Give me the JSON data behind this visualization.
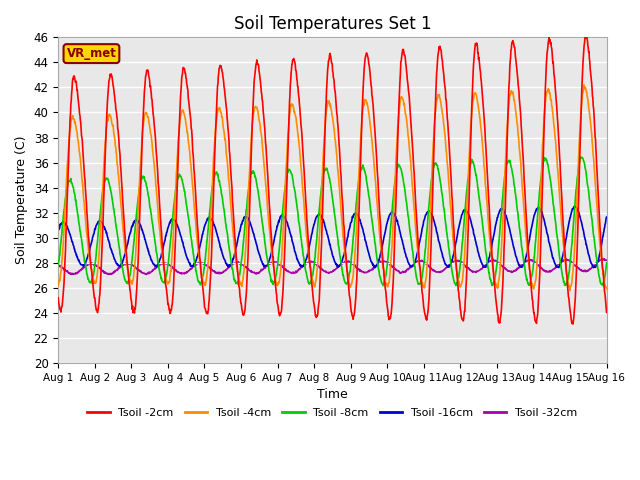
{
  "title": "Soil Temperatures Set 1",
  "xlabel": "Time",
  "ylabel": "Soil Temperature (C)",
  "ylim": [
    20,
    46
  ],
  "yticks": [
    20,
    22,
    24,
    26,
    28,
    30,
    32,
    34,
    36,
    38,
    40,
    42,
    44,
    46
  ],
  "x_labels": [
    "Aug 1",
    "Aug 2",
    "Aug 3",
    "Aug 4",
    "Aug 5",
    "Aug 6",
    "Aug 7",
    "Aug 8",
    "Aug 9",
    "Aug 10",
    "Aug 11",
    "Aug 12",
    "Aug 13",
    "Aug 14",
    "Aug 15",
    "Aug 16"
  ],
  "annotation_text": "VR_met",
  "annotation_color": "#8B0000",
  "annotation_bg": "#FFD700",
  "line_colors": {
    "Tsoil -2cm": "#FF0000",
    "Tsoil -4cm": "#FF8C00",
    "Tsoil -8cm": "#00CC00",
    "Tsoil -16cm": "#0000CC",
    "Tsoil -32cm": "#AA00AA"
  },
  "bg_color": "#E8E8E8",
  "fig_bg": "#FFFFFF",
  "n_days": 15,
  "points_per_day": 96
}
